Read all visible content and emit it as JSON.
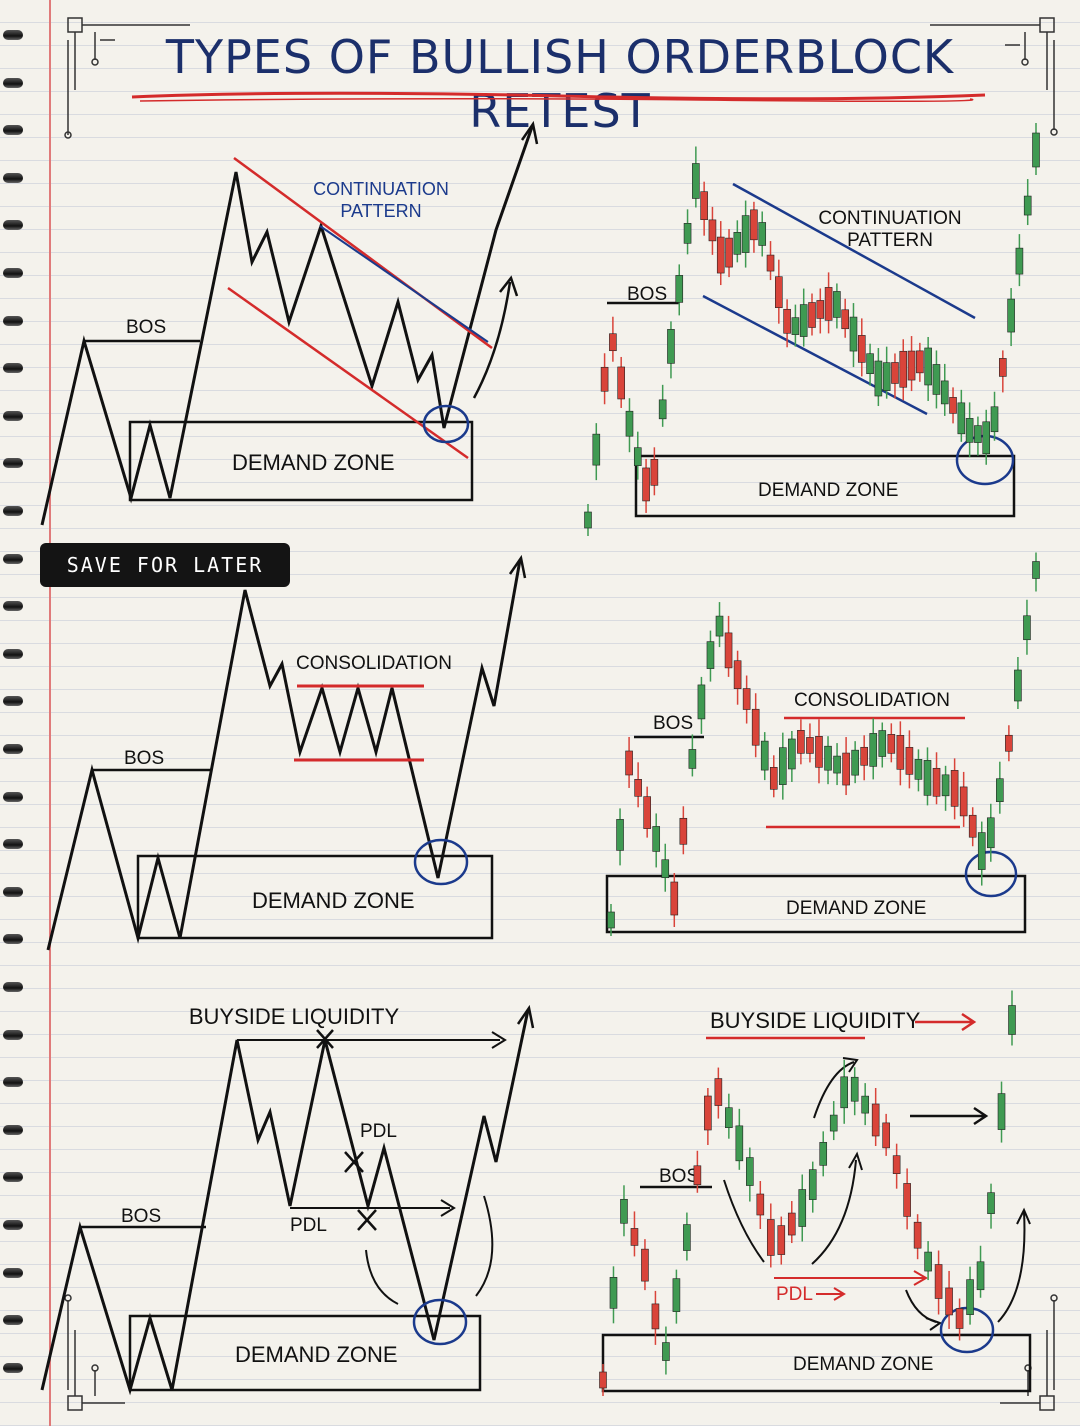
{
  "title": "TYPES OF BULLISH ORDERBLOCK RETEST",
  "badge": "SAVE FOR LATER",
  "panels": {
    "p1_left": {
      "pattern": "CONTINUATION PATTERN",
      "pattern_line1": "CONTINUATION",
      "pattern_line2": "PATTERN",
      "bos": "BOS",
      "zone": "DEMAND ZONE"
    },
    "p1_right": {
      "pattern_line1": "CONTINUATION",
      "pattern_line2": "PATTERN",
      "bos": "BOS",
      "zone": "DEMAND ZONE"
    },
    "p2_left": {
      "pattern": "CONSOLIDATION",
      "bos": "BOS",
      "zone": "DEMAND ZONE"
    },
    "p2_right": {
      "pattern": "CONSOLIDATION",
      "bos": "BOS",
      "zone": "DEMAND ZONE"
    },
    "p3_left": {
      "liquidity": "BUYSIDE LIQUIDITY",
      "pdl_upper": "PDL",
      "pdl_lower": "PDL",
      "bos": "BOS",
      "zone": "DEMAND ZONE"
    },
    "p3_right": {
      "liquidity": "BUYSIDE LIQUIDITY",
      "pdl": "PDL",
      "bos": "BOS",
      "zone": "DEMAND ZONE"
    }
  },
  "colors": {
    "ink": "#111111",
    "title_blue": "#1b2f6b",
    "trend_red": "#d42b2b",
    "trend_blue": "#1b3a8c",
    "bull": "#3f9a52",
    "bear": "#d9443a"
  },
  "candles": {
    "p1": [
      "u",
      "u",
      "d",
      "d",
      "d",
      "u",
      "u",
      "d",
      "d",
      "u",
      "u",
      "u",
      "u",
      "u",
      "d",
      "d",
      "d",
      "d",
      "u",
      "u",
      "d",
      "u",
      "d",
      "d",
      "d",
      "u",
      "u",
      "d",
      "d",
      "d",
      "u",
      "d",
      "u",
      "d",
      "u",
      "u",
      "u",
      "d",
      "d",
      "d",
      "d",
      "u",
      "u",
      "u",
      "d",
      "u",
      "u",
      "u",
      "u",
      "u",
      "d",
      "u",
      "u",
      "u",
      "u"
    ],
    "p2": [
      "u",
      "u",
      "d",
      "d",
      "d",
      "u",
      "u",
      "d",
      "d",
      "u",
      "u",
      "u",
      "u",
      "d",
      "d",
      "d",
      "d",
      "u",
      "d",
      "u",
      "u",
      "d",
      "d",
      "d",
      "u",
      "u",
      "d",
      "u",
      "d",
      "u",
      "u",
      "d",
      "d",
      "d",
      "u",
      "u",
      "d",
      "u",
      "d",
      "d",
      "d",
      "u",
      "u",
      "u",
      "d",
      "u",
      "u",
      "u"
    ],
    "p3": [
      "d",
      "u",
      "u",
      "d",
      "d",
      "d",
      "u",
      "u",
      "u",
      "d",
      "d",
      "d",
      "u",
      "u",
      "u",
      "d",
      "d",
      "d",
      "d",
      "u",
      "u",
      "u",
      "u",
      "u",
      "u",
      "u",
      "d",
      "d",
      "d",
      "d",
      "d",
      "u",
      "d",
      "d",
      "d",
      "u",
      "u",
      "u",
      "u",
      "u"
    ]
  }
}
